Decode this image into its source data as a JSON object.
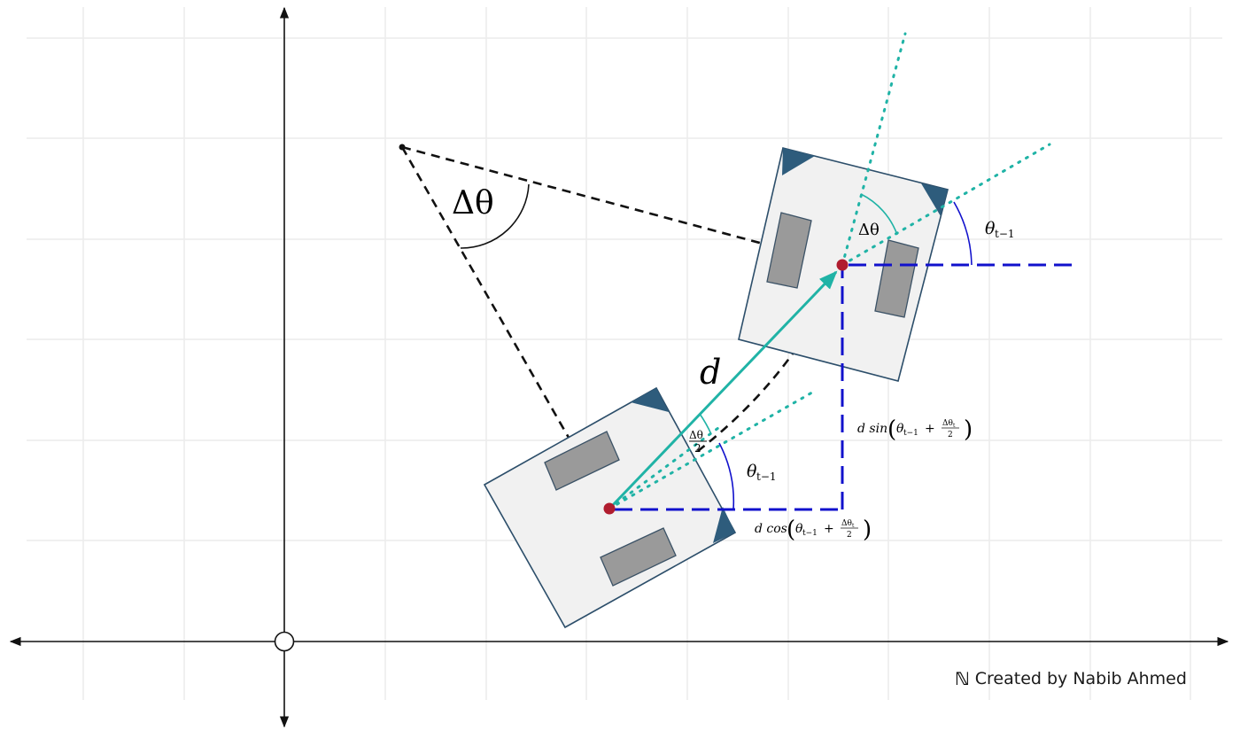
{
  "labels": {
    "delta_theta_large": "Δθ",
    "d": "d",
    "delta_theta_small": "Δθ",
    "half_delta_theta_num": "Δθ",
    "half_delta_theta_den": "2",
    "theta_prev_right": "θ",
    "theta_prev_right_sub": "t−1",
    "theta_prev_left": "θ",
    "theta_prev_left_sub": "t−1",
    "sin_component": {
      "prefix": "d sin",
      "theta": "θ",
      "theta_sub": "t−1",
      "plus": "+",
      "num": "Δθ",
      "num_sub": "t",
      "den": "2"
    },
    "cos_component": {
      "prefix": "d cos",
      "theta": "θ",
      "theta_sub": "t−1",
      "plus": "+",
      "num": "Δθ",
      "num_sub": "t",
      "den": "2"
    }
  },
  "credit": {
    "icon": "ℕ",
    "text": "Created by Nabib Ahmed"
  },
  "colors": {
    "grid": "#ececec",
    "axis": "#111111",
    "robot_fill": "#f1f1f1",
    "robot_stroke": "#2c4e6a",
    "robot_corner": "#2e5c7c",
    "wheel_fill": "#9a9a9a",
    "wheel_stroke": "#3b5266",
    "pose_point": "#b01c2e",
    "travel_vector": "#20b3a6",
    "component_lines": "#1111cc",
    "chord_lines": "#111111"
  },
  "icons": [
    "n-logo-icon",
    "origin-circle-icon",
    "arrowhead-icon"
  ]
}
